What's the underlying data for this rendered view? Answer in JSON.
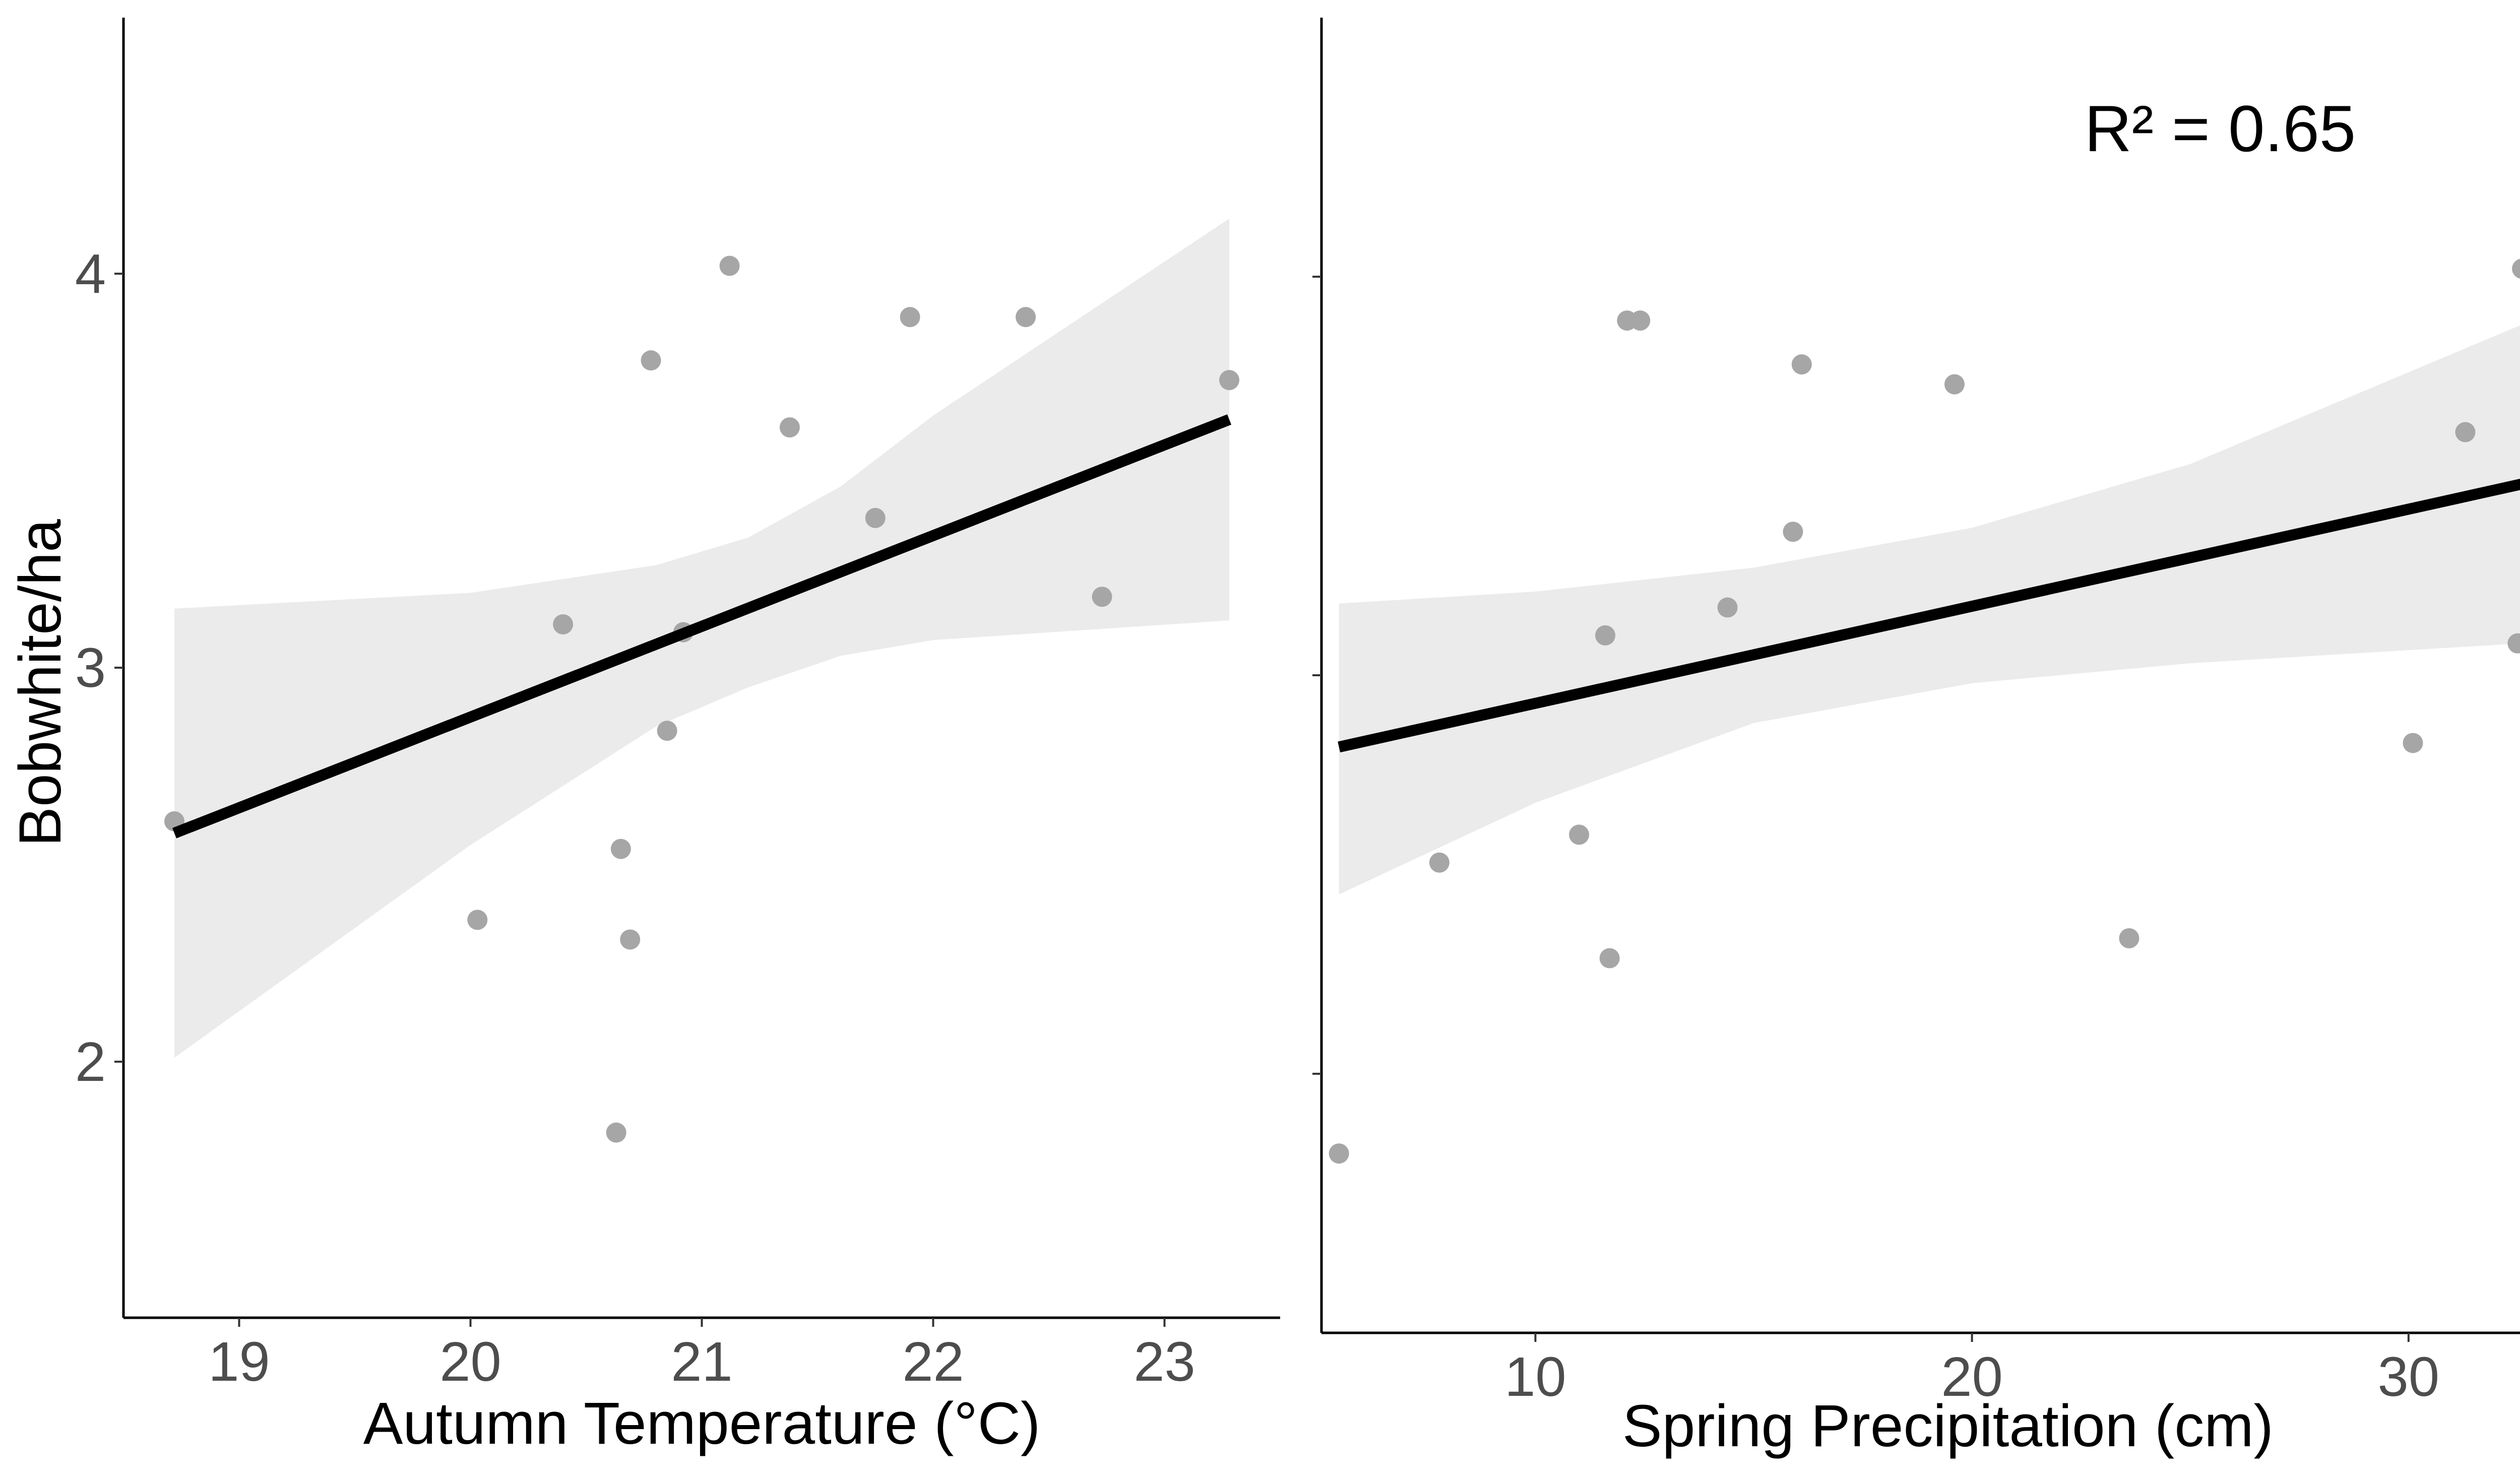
{
  "colors": {
    "point": "#a6a6a6",
    "band": "#ebebeb",
    "line": "#000000",
    "tick_text": "#4d4d4d"
  },
  "chart_data": [
    {
      "type": "scatter",
      "title": "",
      "xlabel": "Autumn Temperature (°C)",
      "ylabel": "Bobwhite/ha",
      "xlim": [
        18.5,
        23.5
      ],
      "ylim": [
        1.35,
        4.65
      ],
      "xticks": [
        "19",
        "20",
        "21",
        "22",
        "23"
      ],
      "yticks": [
        "2",
        "3",
        "4"
      ],
      "grid": false,
      "legend": "none",
      "annotation": "",
      "points": [
        {
          "x": 18.72,
          "y": 2.61
        },
        {
          "x": 20.03,
          "y": 2.36
        },
        {
          "x": 20.4,
          "y": 3.11
        },
        {
          "x": 20.63,
          "y": 1.82
        },
        {
          "x": 20.65,
          "y": 2.54
        },
        {
          "x": 20.69,
          "y": 2.31
        },
        {
          "x": 20.78,
          "y": 3.78
        },
        {
          "x": 20.85,
          "y": 2.84
        },
        {
          "x": 20.92,
          "y": 3.09
        },
        {
          "x": 21.12,
          "y": 4.02
        },
        {
          "x": 21.38,
          "y": 3.61
        },
        {
          "x": 21.75,
          "y": 3.38
        },
        {
          "x": 21.9,
          "y": 3.89
        },
        {
          "x": 22.4,
          "y": 3.89
        },
        {
          "x": 22.73,
          "y": 3.18
        },
        {
          "x": 23.28,
          "y": 3.73
        }
      ],
      "fit": {
        "x": [
          18.72,
          23.28
        ],
        "y": [
          2.58,
          3.63
        ]
      },
      "band": {
        "x": [
          18.72,
          20.0,
          20.8,
          21.2,
          21.6,
          22.0,
          23.28
        ],
        "lower": [
          2.01,
          2.55,
          2.85,
          2.95,
          3.03,
          3.07,
          3.12
        ],
        "upper": [
          3.15,
          3.19,
          3.26,
          3.33,
          3.46,
          3.64,
          4.14
        ]
      }
    },
    {
      "type": "scatter",
      "title": "",
      "xlabel": "Spring Precipitation (cm)",
      "ylabel": "",
      "xlim": [
        5.1,
        33.8
      ],
      "ylim": [
        1.35,
        4.65
      ],
      "xticks": [
        "10",
        "20",
        "30"
      ],
      "yticks": [],
      "grid": false,
      "legend": "none",
      "annotation": "R² = 0.65",
      "points": [
        {
          "x": 5.5,
          "y": 1.8
        },
        {
          "x": 7.8,
          "y": 2.53
        },
        {
          "x": 11.0,
          "y": 2.6
        },
        {
          "x": 11.6,
          "y": 3.1
        },
        {
          "x": 11.7,
          "y": 2.29
        },
        {
          "x": 12.1,
          "y": 3.89
        },
        {
          "x": 12.4,
          "y": 3.89
        },
        {
          "x": 14.4,
          "y": 3.17
        },
        {
          "x": 15.9,
          "y": 3.36
        },
        {
          "x": 16.1,
          "y": 3.78
        },
        {
          "x": 19.6,
          "y": 3.73
        },
        {
          "x": 23.6,
          "y": 2.34
        },
        {
          "x": 30.1,
          "y": 2.83
        },
        {
          "x": 31.3,
          "y": 3.61
        },
        {
          "x": 32.5,
          "y": 3.08
        },
        {
          "x": 32.6,
          "y": 4.02
        }
      ],
      "fit": {
        "x": [
          5.5,
          32.6
        ],
        "y": [
          2.82,
          3.48
        ]
      },
      "band": {
        "x": [
          5.5,
          10.0,
          15.0,
          20.0,
          25.0,
          32.6
        ],
        "lower": [
          2.45,
          2.68,
          2.88,
          2.98,
          3.03,
          3.08
        ],
        "upper": [
          3.18,
          3.21,
          3.27,
          3.37,
          3.53,
          3.88
        ]
      }
    }
  ]
}
